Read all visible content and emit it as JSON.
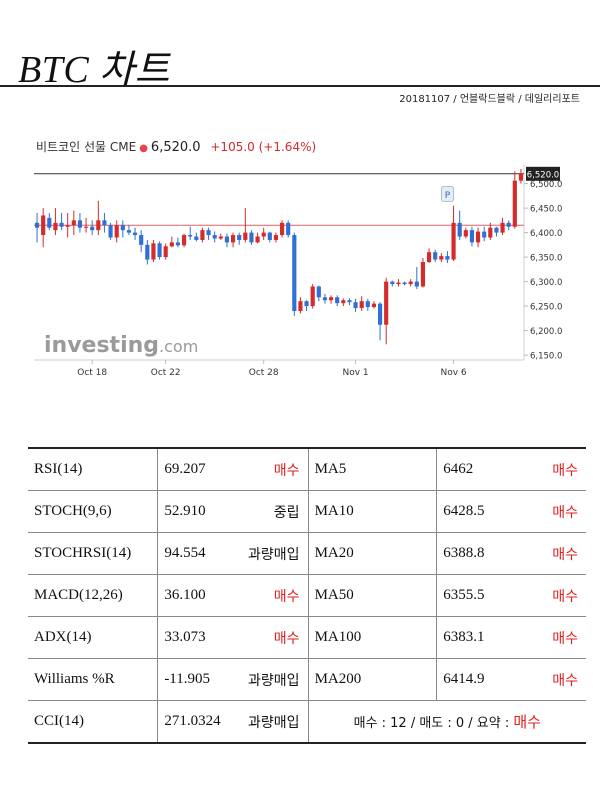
{
  "title": "BTC 차트",
  "byline": "20181107 / 언블락드블락 / 데일리리포트",
  "colors": {
    "up": "#d42b2b",
    "down": "#2f6fd6",
    "buy": "#e02020",
    "ref_line": "#e06060"
  },
  "ticker": {
    "name": "비트코인 선물 CME",
    "price": "6,520.0",
    "change": "+105.0",
    "change_pct": "(+1.64%)"
  },
  "chart_data": {
    "type": "candlestick",
    "watermark": "investing.com",
    "y_ticks": [
      "6,500.0",
      "6,450.0",
      "6,400.0",
      "6,350.0",
      "6,300.0",
      "6,250.0",
      "6,200.0",
      "6,150.0"
    ],
    "ylim": [
      6140,
      6540
    ],
    "x_ticks": [
      {
        "label": "Oct 18",
        "index": 9
      },
      {
        "label": "Oct 22",
        "index": 21
      },
      {
        "label": "Oct 28",
        "index": 37
      },
      {
        "label": "Nov 1",
        "index": 52
      },
      {
        "label": "Nov 6",
        "index": 68
      }
    ],
    "last_price_label": "6,520.0",
    "last_price": 6520,
    "reference_line": 6415,
    "marker_label": "P",
    "marker_index": 67,
    "candles": [
      [
        6420,
        6410,
        6380,
        6440
      ],
      [
        6395,
        6435,
        6370,
        6450
      ],
      [
        6430,
        6410,
        6405,
        6440
      ],
      [
        6405,
        6420,
        6395,
        6450
      ],
      [
        6420,
        6412,
        6405,
        6440
      ],
      [
        6412,
        6415,
        6390,
        6440
      ],
      [
        6415,
        6425,
        6395,
        6445
      ],
      [
        6425,
        6410,
        6400,
        6440
      ],
      [
        6410,
        6412,
        6400,
        6430
      ],
      [
        6412,
        6405,
        6395,
        6425
      ],
      [
        6405,
        6425,
        6395,
        6465
      ],
      [
        6425,
        6415,
        6400,
        6440
      ],
      [
        6415,
        6390,
        6385,
        6420
      ],
      [
        6390,
        6415,
        6380,
        6425
      ],
      [
        6415,
        6405,
        6390,
        6425
      ],
      [
        6405,
        6400,
        6395,
        6415
      ],
      [
        6400,
        6395,
        6385,
        6410
      ],
      [
        6395,
        6375,
        6360,
        6405
      ],
      [
        6375,
        6345,
        6335,
        6385
      ],
      [
        6345,
        6378,
        6340,
        6385
      ],
      [
        6378,
        6350,
        6345,
        6382
      ],
      [
        6350,
        6372,
        6345,
        6378
      ],
      [
        6372,
        6380,
        6370,
        6392
      ],
      [
        6380,
        6374,
        6370,
        6390
      ],
      [
        6374,
        6395,
        6370,
        6398
      ],
      [
        6395,
        6392,
        6385,
        6412
      ],
      [
        6392,
        6385,
        6382,
        6400
      ],
      [
        6385,
        6405,
        6380,
        6410
      ],
      [
        6405,
        6395,
        6385,
        6410
      ],
      [
        6395,
        6388,
        6380,
        6402
      ],
      [
        6388,
        6392,
        6385,
        6398
      ],
      [
        6392,
        6380,
        6370,
        6398
      ],
      [
        6380,
        6395,
        6370,
        6400
      ],
      [
        6395,
        6385,
        6375,
        6400
      ],
      [
        6385,
        6400,
        6380,
        6450
      ],
      [
        6400,
        6380,
        6375,
        6405
      ],
      [
        6380,
        6392,
        6378,
        6400
      ],
      [
        6392,
        6400,
        6385,
        6410
      ],
      [
        6400,
        6385,
        6380,
        6402
      ],
      [
        6385,
        6395,
        6380,
        6400
      ],
      [
        6395,
        6420,
        6390,
        6425
      ],
      [
        6420,
        6395,
        6390,
        6425
      ],
      [
        6395,
        6240,
        6230,
        6400
      ],
      [
        6240,
        6260,
        6235,
        6268
      ],
      [
        6260,
        6250,
        6240,
        6262
      ],
      [
        6250,
        6290,
        6245,
        6295
      ],
      [
        6290,
        6268,
        6260,
        6292
      ],
      [
        6268,
        6262,
        6255,
        6275
      ],
      [
        6262,
        6268,
        6255,
        6272
      ],
      [
        6268,
        6256,
        6250,
        6272
      ],
      [
        6256,
        6262,
        6250,
        6266
      ],
      [
        6262,
        6258,
        6252,
        6266
      ],
      [
        6258,
        6246,
        6238,
        6265
      ],
      [
        6246,
        6260,
        6240,
        6270
      ],
      [
        6260,
        6248,
        6240,
        6265
      ],
      [
        6248,
        6255,
        6245,
        6260
      ],
      [
        6255,
        6212,
        6180,
        6258
      ],
      [
        6212,
        6300,
        6172,
        6308
      ],
      [
        6300,
        6295,
        6290,
        6302
      ],
      [
        6295,
        6298,
        6290,
        6305
      ],
      [
        6298,
        6295,
        6292,
        6300
      ],
      [
        6295,
        6300,
        6290,
        6305
      ],
      [
        6300,
        6290,
        6285,
        6330
      ],
      [
        6290,
        6340,
        6288,
        6348
      ],
      [
        6340,
        6360,
        6338,
        6368
      ],
      [
        6360,
        6345,
        6340,
        6365
      ],
      [
        6345,
        6352,
        6340,
        6358
      ],
      [
        6352,
        6345,
        6338,
        6362
      ],
      [
        6345,
        6420,
        6342,
        6455
      ],
      [
        6420,
        6392,
        6385,
        6445
      ],
      [
        6392,
        6405,
        6388,
        6410
      ],
      [
        6405,
        6380,
        6372,
        6412
      ],
      [
        6380,
        6402,
        6370,
        6410
      ],
      [
        6402,
        6390,
        6382,
        6412
      ],
      [
        6390,
        6410,
        6385,
        6420
      ],
      [
        6410,
        6400,
        6392,
        6412
      ],
      [
        6400,
        6420,
        6395,
        6430
      ],
      [
        6420,
        6412,
        6405,
        6425
      ],
      [
        6412,
        6506,
        6408,
        6525
      ],
      [
        6506,
        6520,
        6500,
        6530
      ]
    ]
  },
  "indicators": [
    {
      "name": "RSI(14)",
      "value": "69.207",
      "signal": "매수",
      "signal_type": "buy",
      "ma_name": "MA5",
      "ma_value": "6462",
      "ma_signal": "매수"
    },
    {
      "name": "STOCH(9,6)",
      "value": "52.910",
      "signal": "중립",
      "signal_type": "neutral",
      "ma_name": "MA10",
      "ma_value": "6428.5",
      "ma_signal": "매수"
    },
    {
      "name": "STOCHRSI(14)",
      "value": "94.554",
      "signal": "과량매입",
      "signal_type": "over",
      "ma_name": "MA20",
      "ma_value": "6388.8",
      "ma_signal": "매수"
    },
    {
      "name": "MACD(12,26)",
      "value": "36.100",
      "signal": "매수",
      "signal_type": "buy",
      "ma_name": "MA50",
      "ma_value": "6355.5",
      "ma_signal": "매수"
    },
    {
      "name": "ADX(14)",
      "value": "33.073",
      "signal": "매수",
      "signal_type": "buy",
      "ma_name": "MA100",
      "ma_value": "6383.1",
      "ma_signal": "매수"
    },
    {
      "name": "Williams %R",
      "value": "-11.905",
      "signal": "과량매입",
      "signal_type": "over",
      "ma_name": "MA200",
      "ma_value": "6414.9",
      "ma_signal": "매수"
    },
    {
      "name": "CCI(14)",
      "value": "271.0324",
      "signal": "과량매입",
      "signal_type": "over"
    }
  ],
  "summary": {
    "text": "매수 : 12 / 매도 : 0 / 요약 : ",
    "verdict": "매수"
  }
}
